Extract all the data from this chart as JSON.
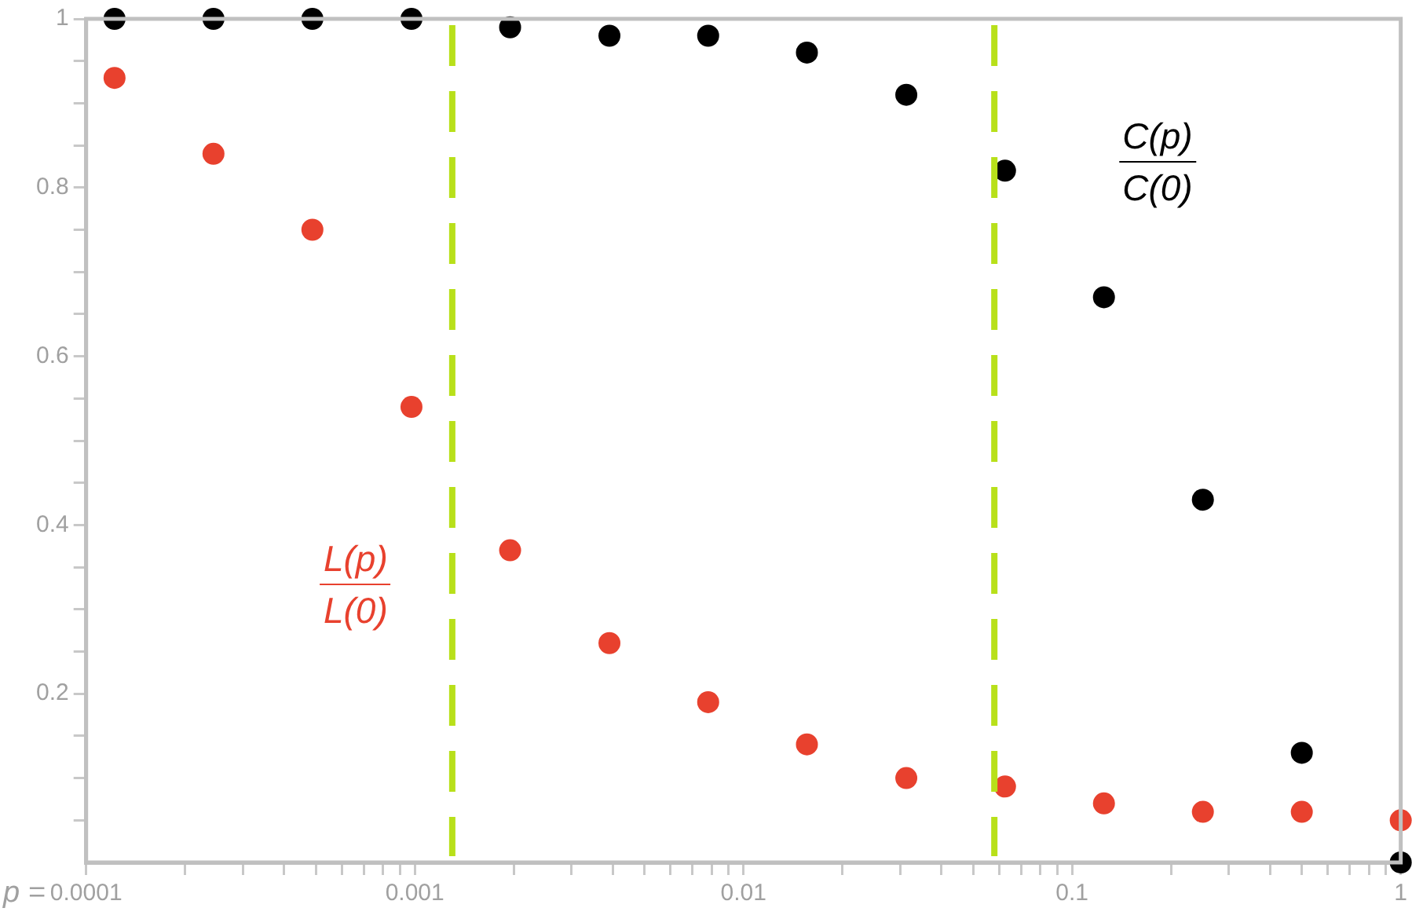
{
  "chart_data": {
    "type": "scatter",
    "xlabel": "p =",
    "log": "x",
    "marker": "circle",
    "legend": false,
    "grid": false,
    "x": [
      0.000122,
      0.000244,
      0.000488,
      0.000977,
      0.00195,
      0.00391,
      0.00781,
      0.0156,
      0.0313,
      0.0625,
      0.125,
      0.25,
      0.5,
      1
    ],
    "series": [
      {
        "color": "#000000",
        "values": [
          1.0,
          1.0,
          1.0,
          1.0,
          0.99,
          0.98,
          0.98,
          0.96,
          0.91,
          0.82,
          0.67,
          0.43,
          0.13,
          0.0
        ]
      },
      {
        "color": "#e8412e",
        "values": [
          0.93,
          0.84,
          0.75,
          0.54,
          0.37,
          0.26,
          0.19,
          0.14,
          0.1,
          0.09,
          0.07,
          0.06,
          0.06,
          0.05
        ]
      }
    ],
    "annotations": [
      "C(p)",
      "C(0)",
      "L(p)",
      "L(0)"
    ],
    "xlim": [
      0.0001,
      1
    ],
    "ylim": [
      0,
      1
    ],
    "xticks": [
      0.0001,
      {
        "value": 0.0002,
        "label": null
      },
      {
        "value": 0.0003,
        "label": null
      },
      {
        "value": 0.0004,
        "label": null
      },
      {
        "value": 0.0005,
        "label": null
      },
      {
        "value": 0.0006,
        "label": null
      },
      {
        "value": 0.0007,
        "label": null
      },
      {
        "value": 0.0008,
        "label": null
      },
      {
        "value": 0.0009,
        "label": null
      },
      0.001,
      {
        "value": 0.002,
        "label": null
      },
      {
        "value": 0.003,
        "label": null
      },
      {
        "value": 0.004,
        "label": null
      },
      {
        "value": 0.005,
        "label": null
      },
      {
        "value": 0.006,
        "label": null
      },
      {
        "value": 0.007,
        "label": null
      },
      {
        "value": 0.008,
        "label": null
      },
      {
        "value": 0.009,
        "label": null
      },
      0.01,
      {
        "value": 0.02,
        "label": null
      },
      {
        "value": 0.03,
        "label": null
      },
      {
        "value": 0.04,
        "label": null
      },
      {
        "value": 0.05,
        "label": null
      },
      {
        "value": 0.06,
        "label": null
      },
      {
        "value": 0.07,
        "label": null
      },
      {
        "value": 0.08,
        "label": null
      },
      {
        "value": 0.09,
        "label": null
      },
      0.1,
      {
        "value": 0.2,
        "label": null
      },
      {
        "value": 0.3,
        "label": null
      },
      {
        "value": 0.4,
        "label": null
      },
      {
        "value": 0.5,
        "label": null
      },
      {
        "value": 0.6,
        "label": null
      },
      {
        "value": 0.7,
        "label": null
      },
      {
        "value": 0.8,
        "label": null
      },
      {
        "value": 0.9,
        "label": null
      },
      1
    ],
    "yticks": [
      {
        "value": 0.05,
        "label": null
      },
      {
        "value": 0.1,
        "label": null
      },
      {
        "value": 0.15,
        "label": null
      },
      0.2,
      {
        "value": 0.25,
        "label": null
      },
      {
        "value": 0.3,
        "label": null
      },
      {
        "value": 0.35,
        "label": null
      },
      0.4,
      {
        "value": 0.45,
        "label": null
      },
      {
        "value": 0.5,
        "label": null
      },
      {
        "value": 0.55,
        "label": null
      },
      0.6,
      {
        "value": 0.65,
        "label": null
      },
      {
        "value": 0.7,
        "label": null
      },
      {
        "value": 0.75,
        "label": null
      },
      0.8,
      {
        "value": 0.85,
        "label": null
      },
      {
        "value": 0.9,
        "label": null
      },
      {
        "value": 0.95,
        "label": null
      },
      1
    ],
    "ref_lines": [
      {
        "axis": "x",
        "value": 0.0013,
        "color": "#b8e01a",
        "line_style": "dashed"
      },
      {
        "axis": "x",
        "value": 0.058,
        "color": "#b8e01a",
        "line_style": "dashed"
      }
    ]
  }
}
